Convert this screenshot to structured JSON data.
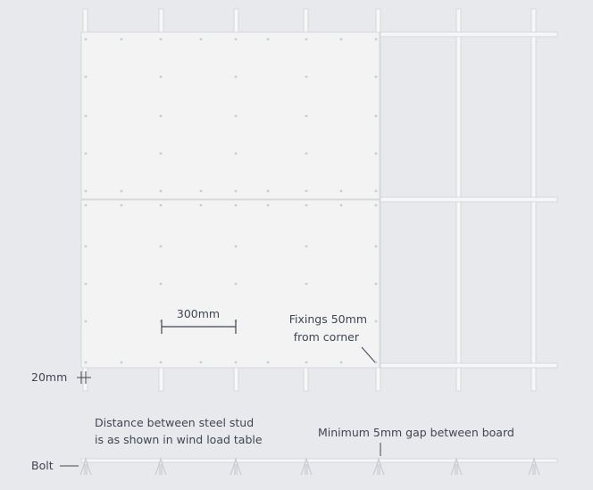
{
  "labels": {
    "spacing": "300mm",
    "fixings_line1": "Fixings 50mm",
    "fixings_line2": "from corner",
    "edge_distance": "20mm",
    "stud_distance_line1": "Distance between steel stud",
    "stud_distance_line2": "is as shown in wind load table",
    "gap": "Minimum 5mm gap between board",
    "bolt": "Bolt"
  },
  "colors": {
    "background": "#e8e9ec",
    "board": "#f3f3f4",
    "stud": "#f7f7f8",
    "stud_edge": "#cfd1d6",
    "text": "#3e4654",
    "fixing": "#c9ccd2"
  }
}
